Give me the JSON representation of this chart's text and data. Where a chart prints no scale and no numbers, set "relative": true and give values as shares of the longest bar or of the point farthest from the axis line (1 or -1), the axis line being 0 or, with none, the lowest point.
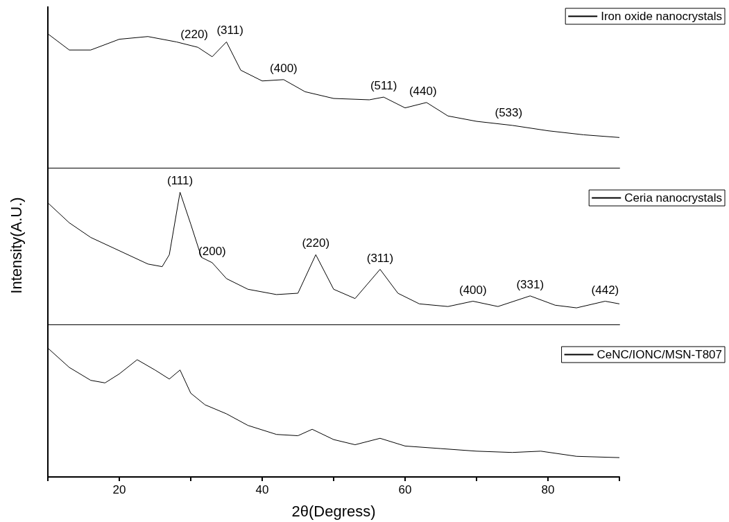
{
  "chart_data": [
    {
      "type": "line",
      "relative": true,
      "xlim": [
        10,
        90
      ],
      "tick_labels": false,
      "legend": "top right",
      "series": [
        {
          "name": "Iron oxide nanocrystals",
          "color": "#000000",
          "x": [
            10,
            13,
            16,
            20,
            24,
            28,
            31,
            33,
            35,
            37,
            40,
            43,
            46,
            50,
            55,
            57,
            60,
            63,
            66,
            70,
            75,
            80,
            85,
            90
          ],
          "values": [
            1.0,
            0.88,
            0.88,
            0.96,
            0.98,
            0.94,
            0.9,
            0.83,
            0.94,
            0.73,
            0.65,
            0.66,
            0.57,
            0.52,
            0.51,
            0.53,
            0.45,
            0.49,
            0.39,
            0.35,
            0.32,
            0.28,
            0.25,
            0.23
          ]
        }
      ],
      "annotations": [
        {
          "text": "(220)",
          "x": 30.5,
          "y": 0.91
        },
        {
          "text": "(311)",
          "x": 35.5,
          "y": 0.94
        },
        {
          "text": "(400)",
          "x": 43,
          "y": 0.66
        },
        {
          "text": "(511)",
          "x": 57,
          "y": 0.53
        },
        {
          "text": "(440)",
          "x": 62.5,
          "y": 0.49
        },
        {
          "text": "(533)",
          "x": 74.5,
          "y": 0.33
        }
      ]
    },
    {
      "type": "line",
      "relative": true,
      "xlim": [
        10,
        90
      ],
      "tick_labels": false,
      "legend": "top right",
      "ylabel": "Intensity(A.U.)",
      "series": [
        {
          "name": "Ceria nanocrystals",
          "color": "#000000",
          "x": [
            10,
            13,
            16,
            20,
            24,
            26,
            27,
            28.5,
            30,
            31.5,
            33,
            35,
            38,
            42,
            45,
            47.5,
            50,
            53,
            56.5,
            59,
            62,
            66,
            69.5,
            73,
            77.5,
            81,
            84,
            88,
            90
          ],
          "values": [
            0.92,
            0.77,
            0.66,
            0.56,
            0.46,
            0.44,
            0.53,
            1.0,
            0.76,
            0.51,
            0.47,
            0.35,
            0.27,
            0.23,
            0.24,
            0.53,
            0.27,
            0.2,
            0.42,
            0.24,
            0.16,
            0.14,
            0.18,
            0.14,
            0.22,
            0.15,
            0.13,
            0.18,
            0.16
          ]
        }
      ],
      "annotations": [
        {
          "text": "(111)",
          "x": 28.5,
          "y": 1.0
        },
        {
          "text": "(200)",
          "x": 33,
          "y": 0.47
        },
        {
          "text": "(220)",
          "x": 47.5,
          "y": 0.53
        },
        {
          "text": "(311)",
          "x": 56.5,
          "y": 0.42
        },
        {
          "text": "(400)",
          "x": 69.5,
          "y": 0.18
        },
        {
          "text": "(331)",
          "x": 77.5,
          "y": 0.22
        },
        {
          "text": "(442)",
          "x": 88,
          "y": 0.18
        }
      ]
    },
    {
      "type": "line",
      "relative": true,
      "xlim": [
        10,
        90
      ],
      "tick_labels": "x",
      "legend": "top right",
      "xlabel": "2θ(Degress)",
      "xticks": [
        {
          "value": 10,
          "label": null
        },
        20,
        {
          "value": 30,
          "label": null
        },
        40,
        {
          "value": 50,
          "label": null
        },
        60,
        {
          "value": 70,
          "label": null
        },
        80,
        {
          "value": 90,
          "label": null
        }
      ],
      "series": [
        {
          "name": "CeNC/IONC/MSN-T807",
          "color": "#000000",
          "x": [
            10,
            13,
            16,
            18,
            20,
            22.5,
            25,
            27,
            28.5,
            30,
            32,
            35,
            38,
            42,
            45,
            47,
            50,
            53,
            56.5,
            60,
            65,
            70,
            75,
            79,
            84,
            90
          ],
          "values": [
            1.0,
            0.85,
            0.75,
            0.73,
            0.8,
            0.91,
            0.83,
            0.76,
            0.83,
            0.65,
            0.56,
            0.49,
            0.4,
            0.33,
            0.32,
            0.37,
            0.29,
            0.25,
            0.3,
            0.24,
            0.22,
            0.2,
            0.19,
            0.2,
            0.16,
            0.15
          ]
        }
      ]
    }
  ]
}
